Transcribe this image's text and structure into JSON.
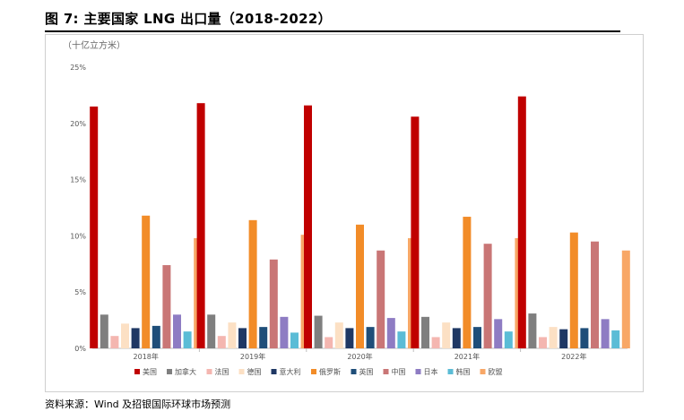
{
  "figure": {
    "title": "图 7: 主要国家 LNG 出口量（2018-2022）",
    "unit": "（十亿立方米）",
    "source": "资料来源：Wind 及招银国际环球市场预测"
  },
  "chart_data": {
    "type": "bar",
    "title": "",
    "xlabel": "",
    "ylabel": "（十亿立方米）",
    "categories": [
      "2018年",
      "2019年",
      "2020年",
      "2021年",
      "2022年"
    ],
    "ylim": [
      0,
      25
    ],
    "yticks": [
      "0%",
      "5%",
      "10%",
      "15%",
      "20%",
      "25%"
    ],
    "grid": false,
    "legend": "bottom",
    "series": [
      {
        "name": "美国",
        "color": "#c00000",
        "values": [
          21.5,
          21.8,
          21.6,
          20.6,
          22.4
        ]
      },
      {
        "name": "加拿大",
        "color": "#7f7f7f",
        "values": [
          3.0,
          3.0,
          2.9,
          2.8,
          3.1
        ]
      },
      {
        "name": "法国",
        "color": "#f4b6b0",
        "values": [
          1.1,
          1.1,
          1.0,
          1.0,
          1.0
        ]
      },
      {
        "name": "德国",
        "color": "#fce0c4",
        "values": [
          2.2,
          2.3,
          2.3,
          2.3,
          1.9
        ]
      },
      {
        "name": "意大利",
        "color": "#1f3864",
        "values": [
          1.8,
          1.8,
          1.8,
          1.8,
          1.7
        ]
      },
      {
        "name": "俄罗斯",
        "color": "#f28c28",
        "values": [
          11.8,
          11.4,
          11.0,
          11.7,
          10.3
        ]
      },
      {
        "name": "英国",
        "color": "#1f4e79",
        "values": [
          2.0,
          1.9,
          1.9,
          1.9,
          1.8
        ]
      },
      {
        "name": "中国",
        "color": "#c97676",
        "values": [
          7.4,
          7.9,
          8.7,
          9.3,
          9.5
        ]
      },
      {
        "name": "日本",
        "color": "#8e7cc3",
        "values": [
          3.0,
          2.8,
          2.7,
          2.6,
          2.6
        ]
      },
      {
        "name": "韩国",
        "color": "#5bbcd6",
        "values": [
          1.5,
          1.4,
          1.5,
          1.5,
          1.6
        ]
      },
      {
        "name": "欧盟",
        "color": "#f8a766",
        "values": [
          9.8,
          10.1,
          9.8,
          9.8,
          8.7
        ]
      }
    ]
  }
}
